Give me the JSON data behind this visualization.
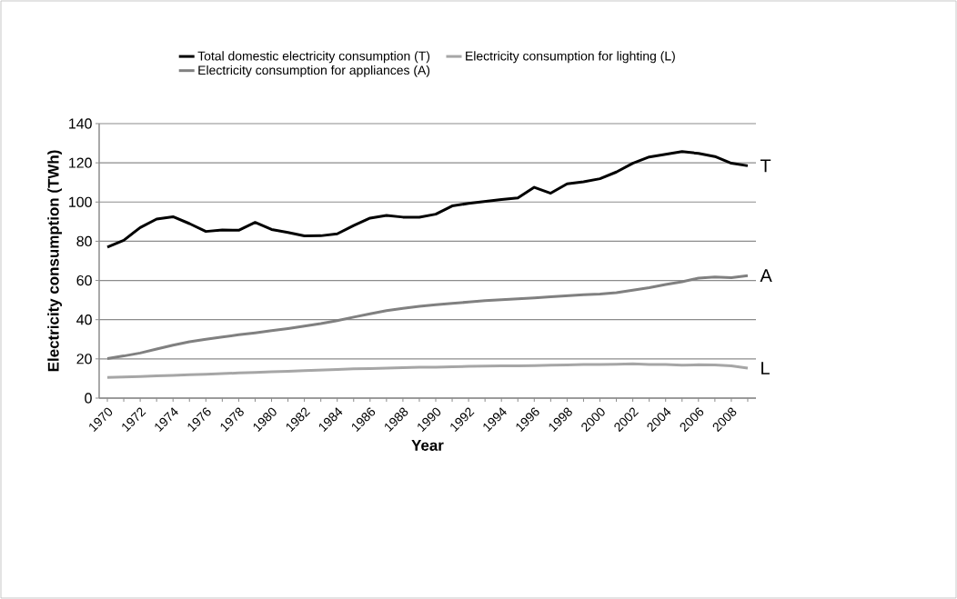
{
  "chart_data": {
    "type": "line",
    "xlabel": "Year",
    "ylabel": "Electricity consumption (TWh)",
    "categories": [
      "1970",
      null,
      "1972",
      null,
      "1974",
      null,
      "1976",
      null,
      "1978",
      null,
      "1980",
      null,
      "1982",
      null,
      "1984",
      null,
      "1986",
      null,
      "1988",
      null,
      "1990",
      null,
      "1992",
      null,
      "1994",
      null,
      "1996",
      null,
      "1998",
      null,
      "2000",
      null,
      "2002",
      null,
      "2004",
      null,
      "2006",
      null,
      "2008",
      null
    ],
    "series": [
      {
        "name": "Total domestic electricity consumption (T)",
        "color": "#000000",
        "values": [
          77,
          80.5,
          87,
          91.3,
          92.5,
          89,
          85,
          85.7,
          85.6,
          89.6,
          86,
          84.5,
          82.7,
          82.8,
          83.8,
          88,
          91.8,
          93.2,
          92.3,
          92.2,
          93.8,
          98,
          99.3,
          100.3,
          101.3,
          102.1,
          107.5,
          104.5,
          109.3,
          110.3,
          111.9,
          115.3,
          119.8,
          123,
          124.3,
          125.7,
          124.8,
          123.2,
          119.8,
          118.5
        ]
      },
      {
        "name": "Electricity consumption for lighting (L)",
        "color": "#a6a6a6",
        "values": [
          10.5,
          10.8,
          11,
          11.3,
          11.6,
          11.9,
          12.2,
          12.5,
          12.8,
          13.1,
          13.4,
          13.7,
          14,
          14.3,
          14.6,
          14.9,
          15.1,
          15.3,
          15.5,
          15.7,
          15.8,
          16,
          16.2,
          16.3,
          16.4,
          16.5,
          16.6,
          16.8,
          16.9,
          17.1,
          17.2,
          17.3,
          17.5,
          17.2,
          17.2,
          16.8,
          17,
          16.9,
          16.5,
          15.3
        ]
      },
      {
        "name": "Electricity consumption for appliances (A)",
        "color": "#808080",
        "values": [
          20.2,
          21.5,
          23,
          25,
          27,
          28.7,
          30,
          31.2,
          32.3,
          33.3,
          34.4,
          35.5,
          36.7,
          38,
          39.5,
          41.3,
          43,
          44.6,
          45.8,
          46.8,
          47.6,
          48.3,
          49,
          49.7,
          50.2,
          50.6,
          51.1,
          51.7,
          52.2,
          52.7,
          53.1,
          53.8,
          55,
          56.3,
          57.9,
          59.3,
          61.2,
          61.8,
          61.4,
          62.5
        ]
      }
    ],
    "ylim": [
      0,
      140
    ],
    "yticks": [
      0,
      20,
      40,
      60,
      80,
      100,
      120,
      140
    ],
    "grid": "y",
    "legend": "top",
    "marker": "none",
    "line_style": "solid",
    "annotations": [
      "T",
      "L",
      "A"
    ]
  }
}
